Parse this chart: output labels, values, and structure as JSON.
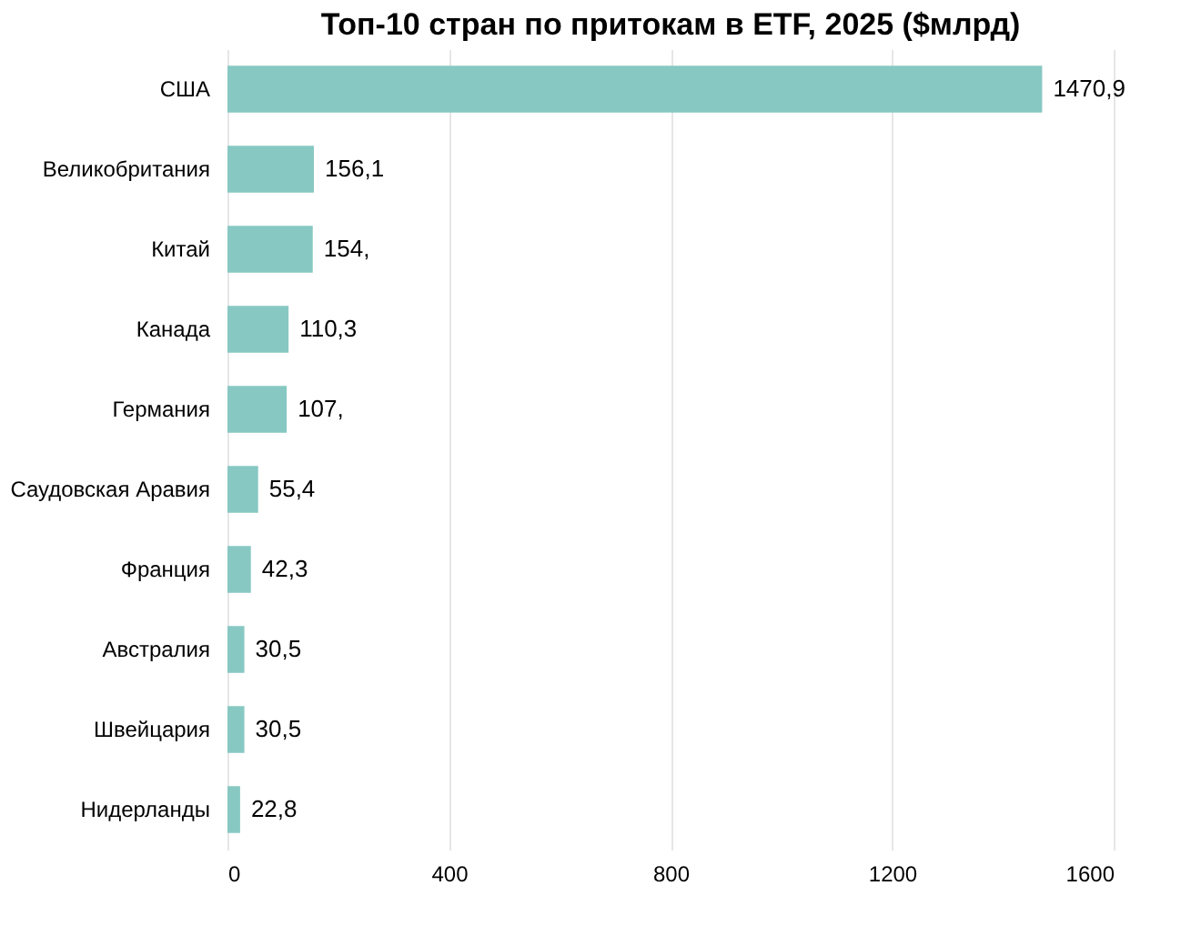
{
  "chart_data": {
    "type": "bar",
    "orientation": "horizontal",
    "title": "Топ-10 стран по притокам в ETF, 2025 ($млрд)",
    "categories": [
      "США",
      "Великобритания",
      "Китай",
      "Канада",
      "Германия",
      "Саудовская Аравия",
      "Франция",
      "Австралия",
      "Швейцария",
      "Нидерланды"
    ],
    "values": [
      1470.9,
      156.1,
      154,
      110.3,
      107,
      55.4,
      42.3,
      30.5,
      30.5,
      22.8
    ],
    "value_labels": [
      "1470,9",
      "156,1",
      "154,",
      "110,3",
      "107,",
      "55,4",
      "42,3",
      "30,5",
      "30,5",
      "22,8"
    ],
    "color": "#88c8c3",
    "xlim": [
      0,
      1600
    ],
    "xticks": [
      0,
      400,
      800,
      1200,
      1600
    ],
    "grid": "x"
  }
}
